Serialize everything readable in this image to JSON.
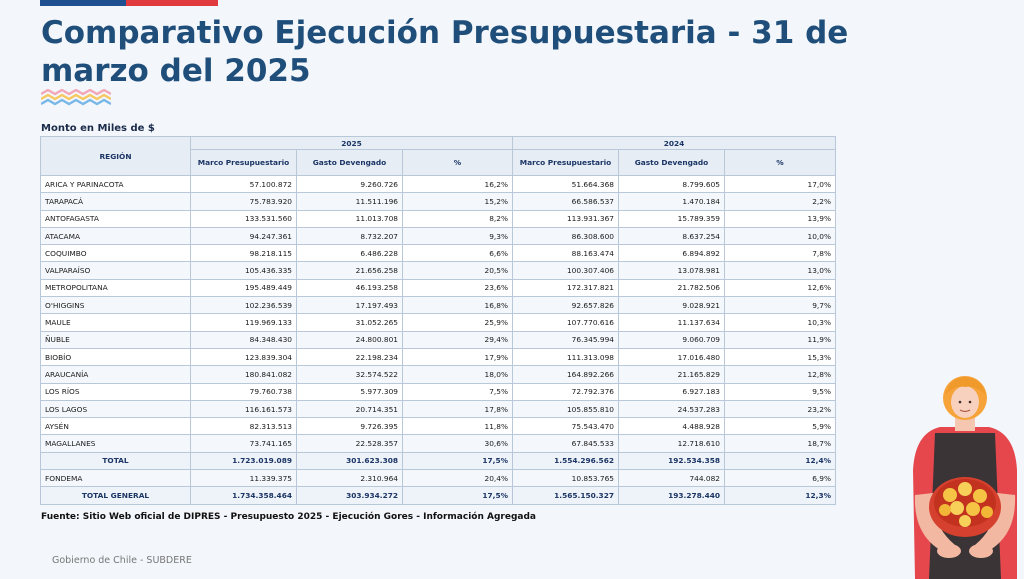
{
  "title": "Comparativo Ejecución Presupuestaria - 31 de marzo del 2025",
  "unit_label": "Monto en Miles de $",
  "table": {
    "region_header": "REGIÓN",
    "year_2025": "2025",
    "year_2024": "2024",
    "col_marco": "Marco Presupuestario",
    "col_gasto": "Gasto Devengado",
    "col_pct": "%",
    "rows": [
      {
        "region": "ARICA Y PARINACOTA",
        "m25": "57.100.872",
        "g25": "9.260.726",
        "p25": "16,2%",
        "m24": "51.664.368",
        "g24": "8.799.605",
        "p24": "17,0%"
      },
      {
        "region": "TARAPACÁ",
        "m25": "75.783.920",
        "g25": "11.511.196",
        "p25": "15,2%",
        "m24": "66.586.537",
        "g24": "1.470.184",
        "p24": "2,2%"
      },
      {
        "region": "ANTOFAGASTA",
        "m25": "133.531.560",
        "g25": "11.013.708",
        "p25": "8,2%",
        "m24": "113.931.367",
        "g24": "15.789.359",
        "p24": "13,9%"
      },
      {
        "region": "ATACAMA",
        "m25": "94.247.361",
        "g25": "8.732.207",
        "p25": "9,3%",
        "m24": "86.308.600",
        "g24": "8.637.254",
        "p24": "10,0%"
      },
      {
        "region": "COQUIMBO",
        "m25": "98.218.115",
        "g25": "6.486.228",
        "p25": "6,6%",
        "m24": "88.163.474",
        "g24": "6.894.892",
        "p24": "7,8%"
      },
      {
        "region": "VALPARAÍSO",
        "m25": "105.436.335",
        "g25": "21.656.258",
        "p25": "20,5%",
        "m24": "100.307.406",
        "g24": "13.078.981",
        "p24": "13,0%"
      },
      {
        "region": "METROPOLITANA",
        "m25": "195.489.449",
        "g25": "46.193.258",
        "p25": "23,6%",
        "m24": "172.317.821",
        "g24": "21.782.506",
        "p24": "12,6%"
      },
      {
        "region": "O'HIGGINS",
        "m25": "102.236.539",
        "g25": "17.197.493",
        "p25": "16,8%",
        "m24": "92.657.826",
        "g24": "9.028.921",
        "p24": "9,7%"
      },
      {
        "region": "MAULE",
        "m25": "119.969.133",
        "g25": "31.052.265",
        "p25": "25,9%",
        "m24": "107.770.616",
        "g24": "11.137.634",
        "p24": "10,3%"
      },
      {
        "region": "ÑUBLE",
        "m25": "84.348.430",
        "g25": "24.800.801",
        "p25": "29,4%",
        "m24": "76.345.994",
        "g24": "9.060.709",
        "p24": "11,9%"
      },
      {
        "region": "BIOBÍO",
        "m25": "123.839.304",
        "g25": "22.198.234",
        "p25": "17,9%",
        "m24": "111.313.098",
        "g24": "17.016.480",
        "p24": "15,3%"
      },
      {
        "region": "ARAUCANÍA",
        "m25": "180.841.082",
        "g25": "32.574.522",
        "p25": "18,0%",
        "m24": "164.892.266",
        "g24": "21.165.829",
        "p24": "12,8%"
      },
      {
        "region": "LOS RÍOS",
        "m25": "79.760.738",
        "g25": "5.977.309",
        "p25": "7,5%",
        "m24": "72.792.376",
        "g24": "6.927.183",
        "p24": "9,5%"
      },
      {
        "region": "LOS LAGOS",
        "m25": "116.161.573",
        "g25": "20.714.351",
        "p25": "17,8%",
        "m24": "105.855.810",
        "g24": "24.537.283",
        "p24": "23,2%"
      },
      {
        "region": "AYSÉN",
        "m25": "82.313.513",
        "g25": "9.726.395",
        "p25": "11,8%",
        "m24": "75.543.470",
        "g24": "4.488.928",
        "p24": "5,9%"
      },
      {
        "region": "MAGALLANES",
        "m25": "73.741.165",
        "g25": "22.528.357",
        "p25": "30,6%",
        "m24": "67.845.533",
        "g24": "12.718.610",
        "p24": "18,7%"
      },
      {
        "region": "TOTAL",
        "m25": "1.723.019.089",
        "g25": "301.623.308",
        "p25": "17,5%",
        "m24": "1.554.296.562",
        "g24": "192.534.358",
        "p24": "12,4%",
        "total": true
      },
      {
        "region": "FONDEMA",
        "m25": "11.339.375",
        "g25": "2.310.964",
        "p25": "20,4%",
        "m24": "10.853.765",
        "g24": "744.082",
        "p24": "6,9%"
      },
      {
        "region": "TOTAL GENERAL",
        "m25": "1.734.358.464",
        "g25": "303.934.272",
        "p25": "17,5%",
        "m24": "1.565.150.327",
        "g24": "193.278.440",
        "p24": "12,3%",
        "total": true
      }
    ]
  },
  "source": "Fuente: Sitio Web oficial de DIPRES - Presupuesto 2025 - Ejecución Gores - Información Agregada",
  "footer": "Gobierno de Chile - SUBDERE",
  "colors": {
    "title": "#1e4e79",
    "flag_blue": "#1d4f91",
    "flag_red": "#e03a3e",
    "header_bg": "#e6edf5"
  }
}
